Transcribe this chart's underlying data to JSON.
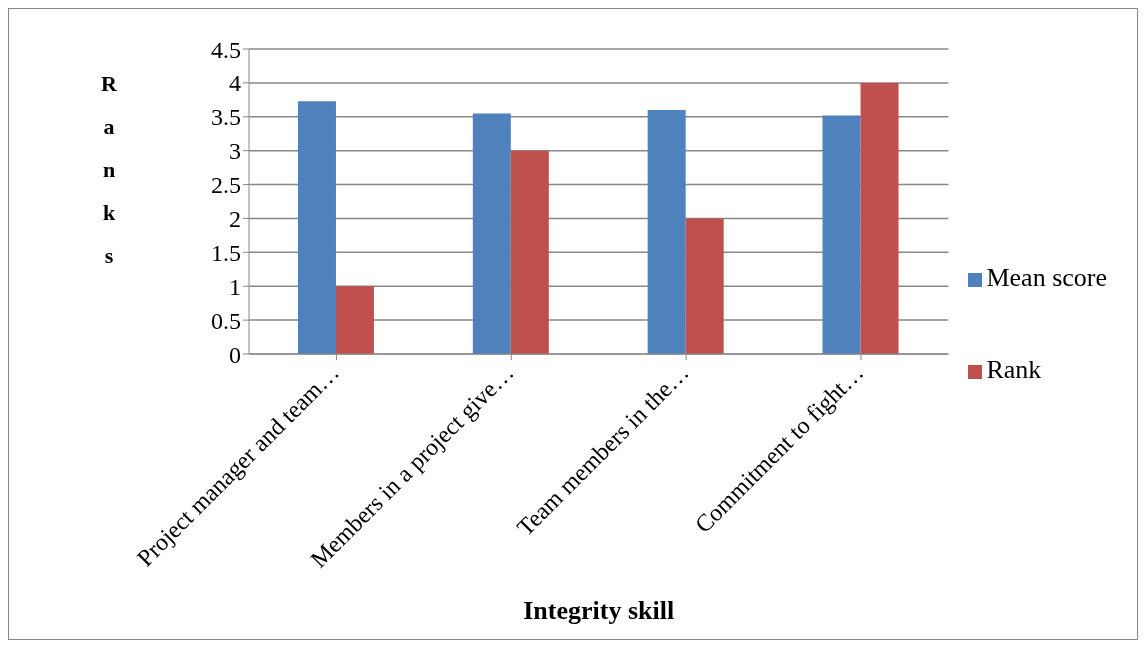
{
  "chart_data": {
    "type": "bar",
    "xlabel": "Integrity skill",
    "ylabel": "Ranks",
    "categories": [
      "Project manager and team…",
      "Members in a project give…",
      "Team members in the…",
      "Commitment to fight…"
    ],
    "series": [
      {
        "name": "Mean score",
        "color": "#4f81bd",
        "values": [
          3.73,
          3.55,
          3.6,
          3.52
        ]
      },
      {
        "name": "Rank",
        "color": "#c0504d",
        "values": [
          1,
          3,
          2,
          4
        ]
      }
    ],
    "ylim": [
      0,
      4.5
    ],
    "yticks": [
      0,
      0.5,
      1,
      1.5,
      2,
      2.5,
      3,
      3.5,
      4,
      4.5
    ],
    "grid": "y",
    "legend": "right"
  }
}
